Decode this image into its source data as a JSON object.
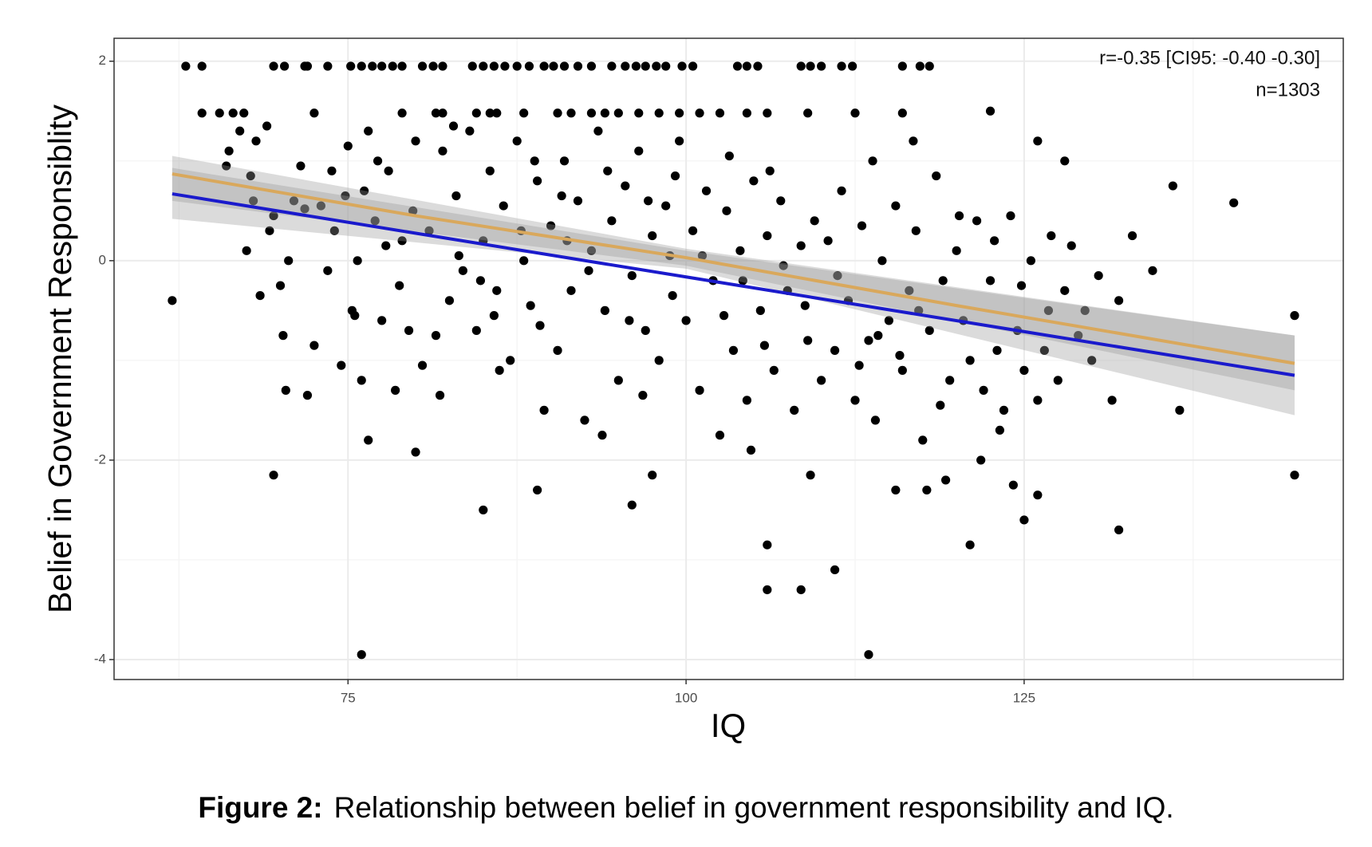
{
  "chart_data": {
    "type": "scatter",
    "x_label": "IQ",
    "y_label": "Belief in Government Responsiblity",
    "annotations": [
      "r=-0.35 [CI95: -0.40 -0.30]",
      "n=1303"
    ],
    "caption_label": "Figure 2:",
    "caption": "Relationship between belief in government responsibility and IQ.",
    "xlim": [
      57.7,
      148.6
    ],
    "ylim": [
      -4.2,
      2.23
    ],
    "xticks": [
      75,
      100,
      125
    ],
    "yticks": [
      -4,
      -2,
      0,
      2
    ],
    "xminor": [
      62.5,
      87.5,
      112.5,
      137.5
    ],
    "yminor": [
      -3,
      -1,
      1
    ],
    "grid": true,
    "color": "#000000",
    "x": [
      63,
      64.2,
      69.5,
      70.3,
      71.8,
      72,
      73.5,
      75.2,
      76,
      76.8,
      77.5,
      78.3,
      79,
      80.5,
      81.3,
      82,
      84.2,
      85,
      85.8,
      86.6,
      87.5,
      88.4,
      89.5,
      90.2,
      91,
      92,
      93,
      94.5,
      95.5,
      96.3,
      97,
      97.8,
      98.5,
      99.7,
      100.5,
      103.8,
      104.5,
      105.3,
      108.5,
      109.2,
      110,
      111.5,
      112.3,
      116,
      117.3,
      118,
      64.2,
      65.5,
      66.5,
      67.3,
      72.5,
      79,
      81.5,
      82,
      84.5,
      85.5,
      86,
      88,
      90.5,
      91.5,
      93,
      94,
      95,
      96.5,
      98,
      99.5,
      101,
      102.5,
      104.5,
      106,
      109,
      112.5,
      116,
      62,
      69.5,
      76,
      113.5,
      85,
      106,
      108.5,
      111,
      106,
      121,
      132,
      145,
      145,
      140.5,
      136,
      133,
      134.5,
      136.5,
      126,
      128,
      122.5,
      132,
      89,
      96,
      97.5,
      76.5,
      80,
      125,
      126,
      115.5,
      66,
      67,
      67.5,
      68,
      68.5,
      69,
      69.5,
      70,
      70.2,
      70.4,
      71,
      71.5,
      72,
      72.5,
      66.2,
      68.2,
      69.2,
      70.6,
      71.8,
      67.8,
      73,
      73.5,
      74,
      74.5,
      75,
      75.3,
      75.7,
      76,
      76.5,
      77,
      77.5,
      78,
      78.5,
      79,
      79.5,
      80,
      80.5,
      73.8,
      74.8,
      76.2,
      77.8,
      78.8,
      79.8,
      75.5,
      77.2,
      81,
      81.5,
      82,
      82.5,
      83,
      83.5,
      84,
      84.5,
      85,
      85.5,
      86,
      86.5,
      87,
      87.5,
      88,
      88.5,
      89,
      89.5,
      90,
      83.2,
      84.8,
      86.2,
      87.8,
      89.2,
      81.8,
      82.8,
      85.8,
      88.8,
      90.5,
      91,
      91.5,
      92,
      92.5,
      93,
      93.5,
      94,
      94.5,
      95,
      95.5,
      96,
      96.5,
      97,
      97.5,
      98,
      98.5,
      99,
      99.5,
      100,
      91.2,
      92.8,
      94.2,
      95.8,
      97.2,
      98.8,
      93.8,
      96.8,
      99.2,
      90.8,
      100.5,
      101,
      101.5,
      102,
      102.5,
      103,
      103.5,
      104,
      104.5,
      105,
      105.5,
      106,
      106.5,
      107,
      107.5,
      108,
      108.5,
      109,
      109.5,
      110,
      101.2,
      102.8,
      104.2,
      105.8,
      107.2,
      108.8,
      103.2,
      106.2,
      109.2,
      104.8,
      110.5,
      111,
      111.5,
      112,
      112.5,
      113,
      113.5,
      114,
      114.5,
      115,
      115.5,
      116,
      116.5,
      117,
      117.5,
      118,
      118.5,
      119,
      119.5,
      120,
      111.2,
      112.8,
      114.2,
      115.8,
      117.2,
      118.8,
      113.8,
      116.8,
      119.2,
      117.8,
      120.5,
      121,
      121.5,
      122,
      122.5,
      123,
      123.5,
      124,
      124.5,
      125,
      125.5,
      126,
      126.5,
      127,
      127.5,
      128,
      129,
      130,
      120.2,
      121.8,
      123.2,
      124.8,
      126.8,
      128.5,
      129.5,
      130.5,
      131.5,
      122.8,
      124.2
    ],
    "values": [
      1.95,
      1.95,
      1.95,
      1.95,
      1.95,
      1.95,
      1.95,
      1.95,
      1.95,
      1.95,
      1.95,
      1.95,
      1.95,
      1.95,
      1.95,
      1.95,
      1.95,
      1.95,
      1.95,
      1.95,
      1.95,
      1.95,
      1.95,
      1.95,
      1.95,
      1.95,
      1.95,
      1.95,
      1.95,
      1.95,
      1.95,
      1.95,
      1.95,
      1.95,
      1.95,
      1.95,
      1.95,
      1.95,
      1.95,
      1.95,
      1.95,
      1.95,
      1.95,
      1.95,
      1.95,
      1.95,
      1.48,
      1.48,
      1.48,
      1.48,
      1.48,
      1.48,
      1.48,
      1.48,
      1.48,
      1.48,
      1.48,
      1.48,
      1.48,
      1.48,
      1.48,
      1.48,
      1.48,
      1.48,
      1.48,
      1.48,
      1.48,
      1.48,
      1.48,
      1.48,
      1.48,
      1.48,
      1.48,
      -0.4,
      -2.15,
      -3.95,
      -3.95,
      -2.5,
      -3.3,
      -3.3,
      -3.1,
      -2.85,
      -2.85,
      -2.7,
      -2.15,
      -0.55,
      0.58,
      0.75,
      0.25,
      -0.1,
      -1.5,
      1.2,
      1.0,
      1.5,
      -0.4,
      -2.3,
      -2.45,
      -2.15,
      -1.8,
      -1.92,
      -2.6,
      -2.35,
      -2.3,
      0.95,
      1.3,
      0.1,
      0.6,
      -0.35,
      1.35,
      0.45,
      -0.25,
      -0.75,
      -1.3,
      0.6,
      0.95,
      -1.35,
      -0.85,
      1.1,
      1.2,
      0.3,
      0.0,
      0.52,
      0.85,
      0.55,
      -0.1,
      0.3,
      -1.05,
      1.15,
      -0.5,
      0.0,
      -1.2,
      1.3,
      0.4,
      -0.6,
      0.9,
      -1.3,
      0.2,
      -0.7,
      1.2,
      -1.05,
      0.9,
      0.65,
      0.7,
      0.15,
      -0.25,
      0.5,
      -0.55,
      1.0,
      0.3,
      -0.75,
      1.1,
      -0.4,
      0.65,
      -0.1,
      1.3,
      -0.7,
      0.2,
      0.9,
      -0.3,
      0.55,
      -1.0,
      1.2,
      0.0,
      -0.45,
      0.8,
      -1.5,
      0.35,
      0.05,
      -0.2,
      -1.1,
      0.3,
      -0.65,
      -1.35,
      1.35,
      -0.55,
      1.0,
      -0.9,
      1.0,
      -0.3,
      0.6,
      -1.6,
      0.1,
      1.3,
      -0.5,
      0.4,
      -1.2,
      0.75,
      -0.15,
      1.1,
      -0.7,
      0.25,
      -1.0,
      0.55,
      -0.35,
      1.2,
      -0.6,
      0.2,
      -0.1,
      0.9,
      -0.6,
      0.6,
      0.05,
      -1.75,
      -1.35,
      0.85,
      0.65,
      0.3,
      -1.3,
      0.7,
      -0.2,
      -1.75,
      0.5,
      -0.9,
      0.1,
      -1.4,
      0.8,
      -0.5,
      0.25,
      -1.1,
      0.6,
      -0.3,
      -1.5,
      0.15,
      -0.8,
      0.4,
      -1.2,
      0.05,
      -0.55,
      -0.2,
      -0.85,
      -0.05,
      -0.45,
      1.05,
      0.9,
      -2.15,
      -1.9,
      0.2,
      -0.9,
      0.7,
      -0.4,
      -1.4,
      0.35,
      -0.8,
      -1.6,
      0.0,
      -0.6,
      0.55,
      -1.1,
      -0.3,
      0.3,
      -1.8,
      -0.7,
      0.85,
      -0.2,
      -1.2,
      0.1,
      -0.15,
      -1.05,
      -0.75,
      -0.95,
      -0.5,
      -1.45,
      1.0,
      1.2,
      -2.2,
      -2.3,
      -0.6,
      -1.0,
      0.4,
      -1.3,
      -0.2,
      -0.9,
      -1.5,
      0.45,
      -0.7,
      -1.1,
      0.0,
      -1.4,
      -0.9,
      0.25,
      -1.2,
      -0.3,
      -0.75,
      -1.0,
      0.45,
      -2.0,
      -1.7,
      -0.25,
      -0.5,
      0.15,
      -0.5,
      -0.15,
      -1.4,
      0.2,
      -2.25
    ],
    "bands": [
      {
        "color": "#999999",
        "x": [
          62,
          100,
          145
        ],
        "lower": [
          0.6,
          -0.05,
          -1.3
        ],
        "upper": [
          1.05,
          0.12,
          -0.75
        ]
      },
      {
        "color": "#999999",
        "x": [
          62,
          100,
          145
        ],
        "lower": [
          0.42,
          -0.08,
          -1.55
        ],
        "upper": [
          0.93,
          0.1,
          -0.75
        ]
      }
    ],
    "lines": [
      {
        "color": "#d9a85c",
        "x": [
          62,
          80,
          100,
          120,
          145
        ],
        "y": [
          0.87,
          0.45,
          0.03,
          -0.45,
          -1.03
        ]
      },
      {
        "color": "#1a1acc",
        "x": [
          62,
          145
        ],
        "y": [
          0.67,
          -1.15
        ]
      }
    ]
  }
}
